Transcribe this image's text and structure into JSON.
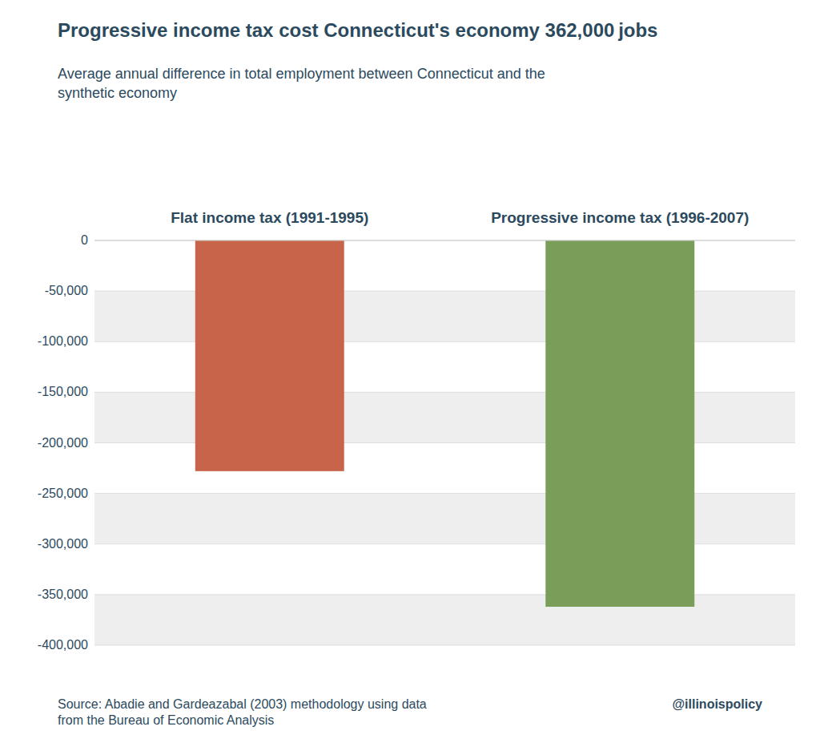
{
  "chart_data": {
    "type": "bar",
    "title": "Progressive income tax cost Connecticut's economy 362,000 jobs",
    "subtitle": "Average annual difference in total employment between Connecticut and the\nsynthetic economy",
    "categories": [
      "Flat income tax (1991-1995)",
      "Progressive income tax (1996-2007)"
    ],
    "values": [
      -228000,
      -362000
    ],
    "colors": [
      "#c8644a",
      "#7a9e5a"
    ],
    "ylim": [
      -400000,
      0
    ],
    "yticks": [
      0,
      {
        "value": -50000,
        "label": "-50,000"
      },
      {
        "value": -100000,
        "label": "-100,000"
      },
      {
        "value": -150000,
        "label": "-150,000"
      },
      {
        "value": -200000,
        "label": "-200,000"
      },
      {
        "value": -250000,
        "label": "-250,000"
      },
      {
        "value": -300000,
        "label": "-300,000"
      },
      {
        "value": -350000,
        "label": "-350,000"
      },
      {
        "value": -400000,
        "label": "-400,000"
      }
    ],
    "grid": true,
    "annotations": [
      "Source: Abadie and Gardeazabal (2003) methodology using data\nfrom the Bureau of Economic Analysis",
      "@illinoispolicy"
    ]
  }
}
